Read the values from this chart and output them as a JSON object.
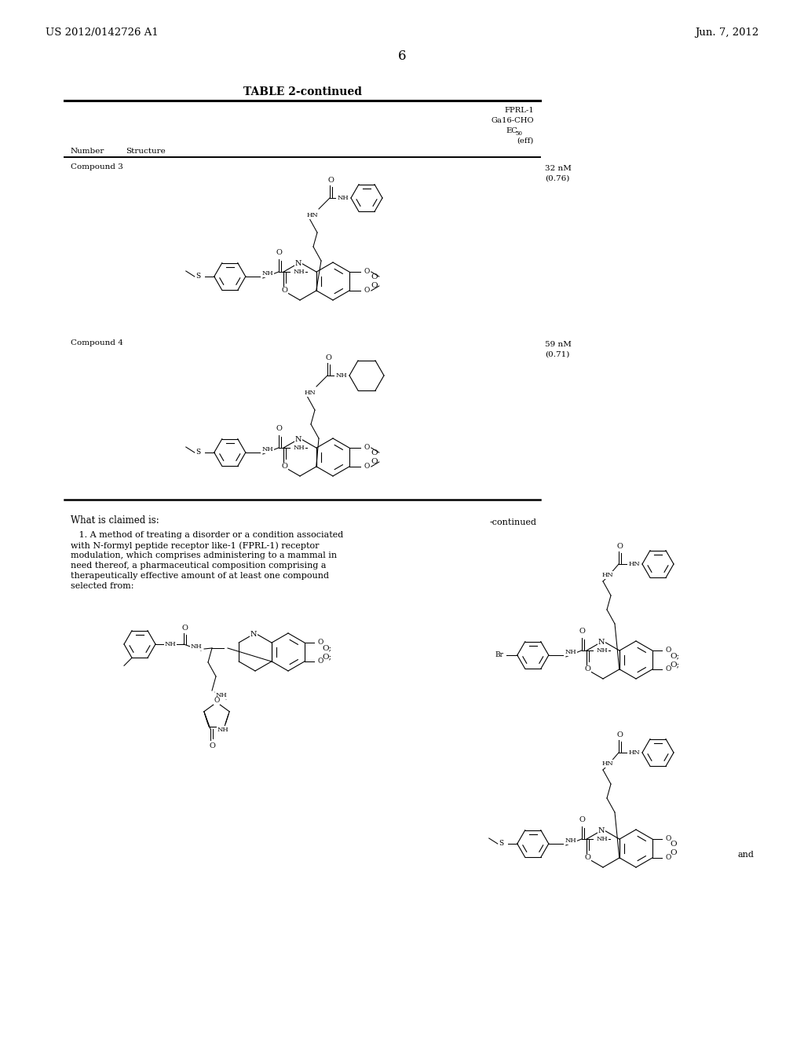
{
  "bg": "#ffffff",
  "header_left": "US 2012/0142726 A1",
  "header_right": "Jun. 7, 2012",
  "page_num": "6",
  "table_title": "TABLE 2-continued",
  "col3_h1": "FPRL-1",
  "col3_h2": "Ga16-CHO",
  "col3_h3": "EC",
  "col3_h3b": "50",
  "col3_h4": "(eff)",
  "num_header": "Number",
  "str_header": "Structure",
  "c3_label": "Compound 3",
  "c3_val1": "32 nM",
  "c3_val2": "(0.76)",
  "c4_label": "Compound 4",
  "c4_val1": "59 nM",
  "c4_val2": "(0.71)",
  "claims_intro": "What is claimed is:",
  "claim1_l1": "   1. A method of treating a disorder or a condition associated",
  "claim1_l2": "with N-formyl peptide receptor like-1 (FPRL-1) receptor",
  "claim1_l3": "modulation, which comprises administering to a mammal in",
  "claim1_l4": "need thereof, a pharmaceutical composition comprising a",
  "claim1_l5": "therapeutically effective amount of at least one compound",
  "claim1_l6": "selected from:",
  "continued_lbl": "-continued",
  "and_lbl": "and"
}
